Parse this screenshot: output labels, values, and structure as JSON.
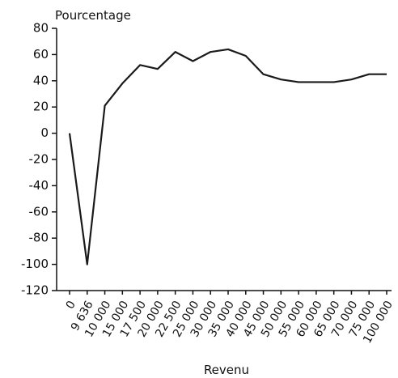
{
  "chart_data": {
    "type": "line",
    "y_label": "Pourcentage",
    "x_label": "Revenu",
    "categories": [
      "0",
      "9 636",
      "10 000",
      "15 000",
      "17 500",
      "20 000",
      "22 500",
      "25 000",
      "30 000",
      "35 000",
      "40 000",
      "45 000",
      "50 000",
      "55 000",
      "60 000",
      "65 000",
      "70 000",
      "75 000",
      "100 000"
    ],
    "values": [
      0,
      -100,
      21,
      38,
      52,
      49,
      62,
      55,
      62,
      64,
      59,
      45,
      41,
      39,
      39,
      39,
      41,
      45,
      45
    ],
    "color": "#1a1a1a",
    "ylim": [
      -120,
      80
    ],
    "yticks": [
      -120,
      -100,
      -80,
      -60,
      -40,
      -20,
      0,
      20,
      40,
      60,
      80
    ],
    "grid": false
  }
}
